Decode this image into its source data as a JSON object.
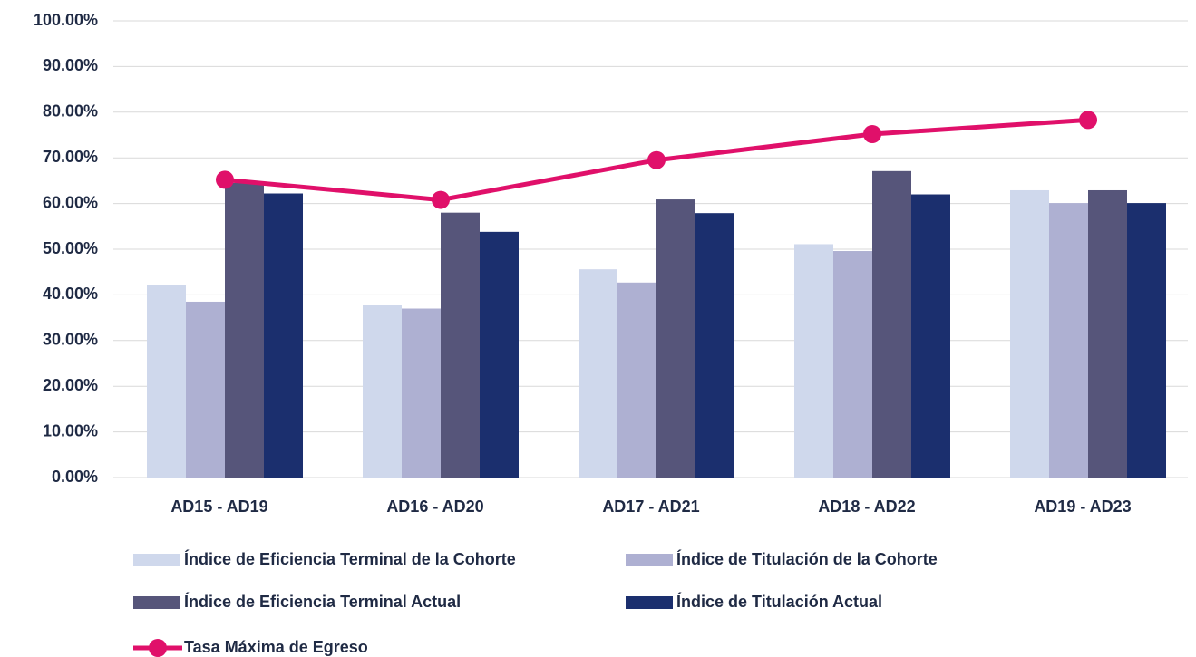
{
  "chart_data": {
    "type": "bar",
    "categories": [
      "AD15 - AD19",
      "AD16 - AD20",
      "AD17 - AD21",
      "AD18 - AD22",
      "AD19 - AD23"
    ],
    "series": [
      {
        "name": "Índice de Eficiencia Terminal de la Cohorte",
        "color": "#cfd8ec",
        "values": [
          42.2,
          37.7,
          45.6,
          51.1,
          62.9
        ]
      },
      {
        "name": "Índice de Titulación de la Cohorte",
        "color": "#aeb0d2",
        "values": [
          38.5,
          37.0,
          42.7,
          49.6,
          60.1
        ]
      },
      {
        "name": "Índice de Eficiencia Terminal Actual",
        "color": "#56557a",
        "values": [
          64.5,
          58.0,
          60.9,
          67.1,
          62.9
        ]
      },
      {
        "name": "Índice de Titulación Actual",
        "color": "#1b2f6e",
        "values": [
          62.2,
          53.8,
          57.9,
          62.0,
          60.1
        ]
      },
      {
        "name": "Tasa Máxima de Egreso",
        "color": "#e0106a",
        "type": "line",
        "values": [
          65.2,
          60.8,
          69.5,
          75.2,
          78.3
        ]
      }
    ],
    "ylim": [
      0,
      100
    ],
    "yticks": [
      {
        "value": 0,
        "label": "0.00%"
      },
      {
        "value": 10,
        "label": "10.00%"
      },
      {
        "value": 20,
        "label": "20.00%"
      },
      {
        "value": 30,
        "label": "30.00%"
      },
      {
        "value": 40,
        "label": "40.00%"
      },
      {
        "value": 50,
        "label": "50.00%"
      },
      {
        "value": 60,
        "label": "60.00%"
      },
      {
        "value": 70,
        "label": "70.00%"
      },
      {
        "value": 80,
        "label": "80.00%"
      },
      {
        "value": 90,
        "label": "90.00%"
      },
      {
        "value": 100,
        "label": "100.00%"
      }
    ],
    "grid": true
  }
}
